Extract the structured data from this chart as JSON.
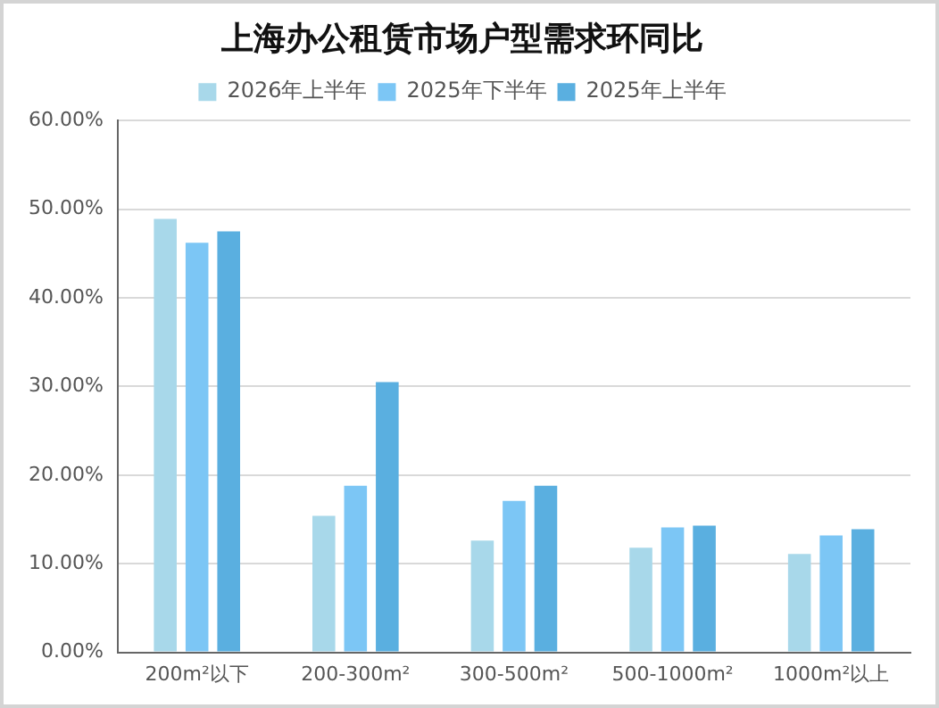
{
  "chart_data": {
    "type": "bar",
    "title": "上海办公租赁市场户型需求环同比",
    "categories": [
      "200m²以下",
      "200-300m²",
      "300-500m²",
      "500-1000m²",
      "1000m²以上"
    ],
    "series": [
      {
        "name": "2026年上半年",
        "color": "#a8d8ea",
        "values": [
          48.9,
          15.4,
          12.6,
          11.8,
          11.1
        ]
      },
      {
        "name": "2025年下半年",
        "color": "#7cc6f5",
        "values": [
          46.2,
          18.8,
          17.1,
          14.1,
          13.2
        ]
      },
      {
        "name": "2025年上半年",
        "color": "#5aafe0",
        "values": [
          47.5,
          30.5,
          18.8,
          14.3,
          13.9
        ]
      }
    ],
    "ylim": [
      0,
      60
    ],
    "yticks": [
      {
        "value": 0,
        "label": "0.00%"
      },
      {
        "value": 10,
        "label": "10.00%"
      },
      {
        "value": 20,
        "label": "20.00%"
      },
      {
        "value": 30,
        "label": "30.00%"
      },
      {
        "value": 40,
        "label": "40.00%"
      },
      {
        "value": 50,
        "label": "50.00%"
      },
      {
        "value": 60,
        "label": "60.00%"
      }
    ],
    "grid": "y",
    "legend": "top"
  }
}
